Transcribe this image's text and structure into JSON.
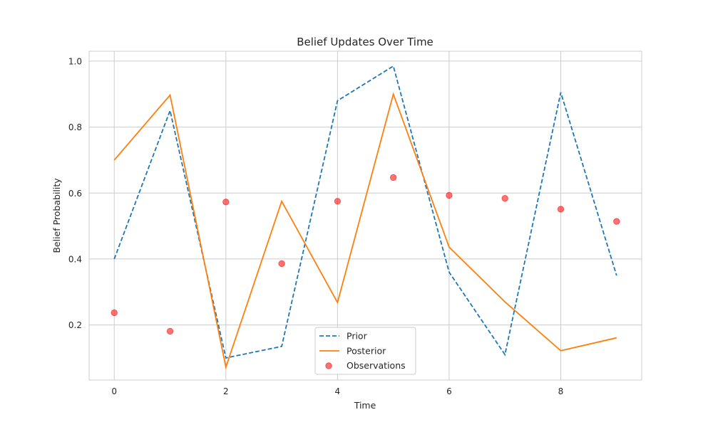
{
  "chart_data": {
    "type": "line",
    "title": "Belief Updates Over Time",
    "xlabel": "Time",
    "ylabel": "Belief Probability",
    "xlim": [
      -0.45,
      9.45
    ],
    "ylim": [
      0.033,
      1.03
    ],
    "x_ticks": [
      0,
      2,
      4,
      6,
      8
    ],
    "y_ticks": [
      0.2,
      0.4,
      0.6,
      0.8,
      1.0
    ],
    "x_tick_labels": [
      "0",
      "2",
      "4",
      "6",
      "8"
    ],
    "y_tick_labels": [
      "0.2",
      "0.4",
      "0.6",
      "0.8",
      "1.0"
    ],
    "grid": true,
    "legend_position": "lower-center",
    "x": [
      0,
      1,
      2,
      3,
      4,
      5,
      6,
      7,
      8,
      9
    ],
    "series": [
      {
        "name": "Prior",
        "kind": "line",
        "style": "dashed",
        "color": "#1f77b4",
        "values": [
          0.4,
          0.85,
          0.1,
          0.135,
          0.88,
          0.985,
          0.36,
          0.11,
          0.905,
          0.35
        ]
      },
      {
        "name": "Posterior",
        "kind": "line",
        "style": "solid",
        "color": "#ff7f0e",
        "values": [
          0.7,
          0.897,
          0.072,
          0.575,
          0.268,
          0.9,
          0.436,
          0.27,
          0.122,
          0.161
        ]
      },
      {
        "name": "Observations",
        "kind": "scatter",
        "color": "#ff0000",
        "values": [
          0.237,
          0.181,
          0.573,
          0.386,
          0.575,
          0.647,
          0.593,
          0.584,
          0.551,
          0.514
        ]
      }
    ]
  }
}
